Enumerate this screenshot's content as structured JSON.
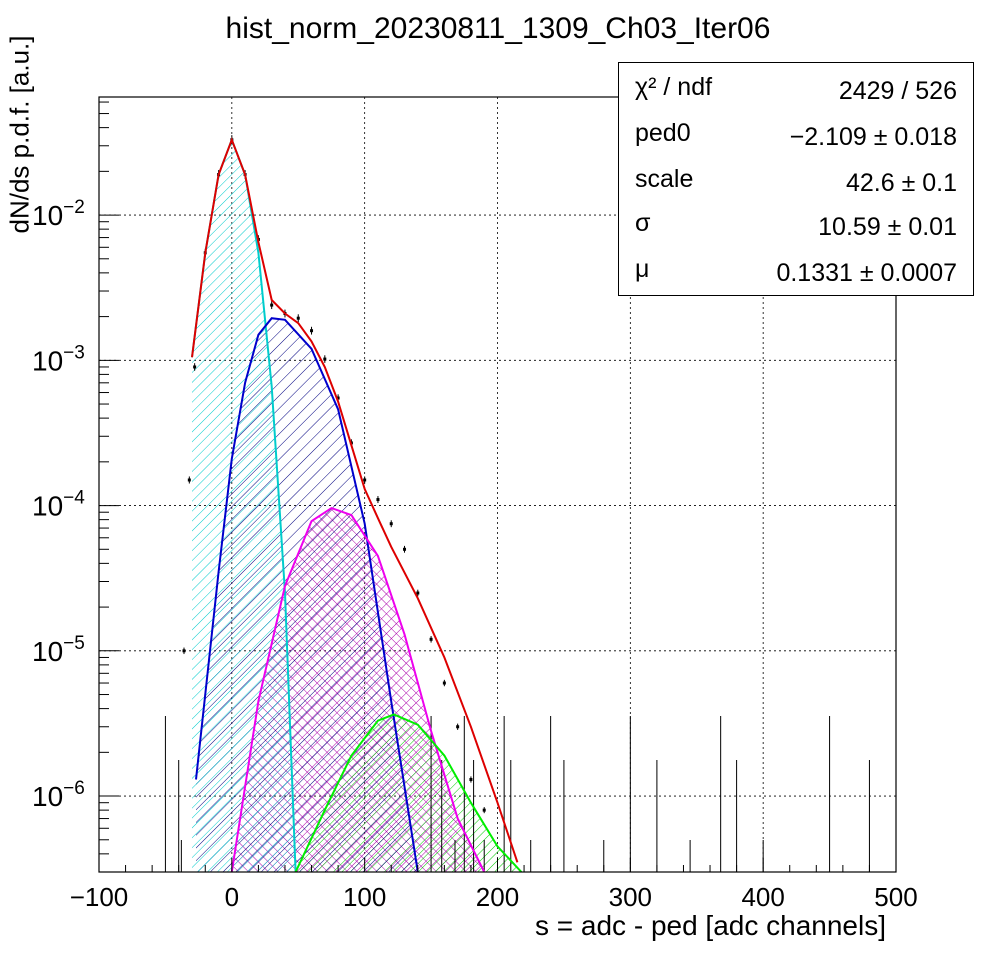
{
  "chart_data": {
    "type": "histogram",
    "title": "hist_norm_20230811_1309_Ch03_Iter06",
    "xlabel": "s = adc - ped [adc channels]",
    "ylabel": "dN/ds p.d.f. [a.u.]",
    "xlim": [
      -100,
      500
    ],
    "ylim": [
      3e-07,
      0.065
    ],
    "yscale": "log",
    "grid": true,
    "x_ticks": [
      "−100",
      "0",
      "100",
      "200",
      "300",
      "400",
      "500"
    ],
    "y_ticks": [
      {
        "value": 1e-06,
        "base": "10",
        "exp": "−6"
      },
      {
        "value": 1e-05,
        "base": "10",
        "exp": "−5"
      },
      {
        "value": 0.0001,
        "base": "10",
        "exp": "−4"
      },
      {
        "value": 0.001,
        "base": "10",
        "exp": "−3"
      },
      {
        "value": 0.01,
        "base": "10",
        "exp": "−2"
      }
    ],
    "stats": [
      {
        "key": "χ² / ndf",
        "value": "2429 / 526"
      },
      {
        "key": "ped0",
        "value": "−2.109 ± 0.018"
      },
      {
        "key": "scale",
        "value": "42.6 ± 0.1"
      },
      {
        "key": "σ",
        "value": "10.59 ± 0.01"
      },
      {
        "key": "μ",
        "value": "0.1331 ± 0.0007"
      }
    ],
    "series": [
      {
        "color": "#00cccc",
        "x": [
          -30,
          -20,
          -10,
          0,
          10,
          20,
          30,
          40,
          48
        ],
        "y": [
          0.00105,
          0.0055,
          0.019,
          0.033,
          0.019,
          0.0055,
          0.00066,
          2.5e-05,
          3e-07
        ]
      },
      {
        "color": "#0000cc",
        "x": [
          -27,
          -10,
          0,
          10,
          20,
          30,
          40,
          60,
          80,
          100,
          120,
          140
        ],
        "y": [
          1.3e-06,
          3.5e-05,
          0.00021,
          0.0007,
          0.0015,
          0.00195,
          0.0019,
          0.0012,
          0.00046,
          7.5e-05,
          4.5e-06,
          3e-07
        ]
      },
      {
        "color": "#ee00ee",
        "x": [
          0,
          20,
          40,
          60,
          75,
          90,
          110,
          130,
          150,
          170,
          190
        ],
        "y": [
          3e-07,
          4.5e-06,
          2.8e-05,
          7.8e-05,
          9.6e-05,
          8.6e-05,
          4.5e-05,
          1.3e-05,
          2.8e-06,
          7e-07,
          3e-07
        ]
      },
      {
        "color": "#00ee00",
        "x": [
          48,
          70,
          90,
          110,
          122,
          140,
          160,
          180,
          200,
          218
        ],
        "y": [
          3e-07,
          8e-07,
          1.9e-06,
          3.3e-06,
          3.65e-06,
          3.1e-06,
          1.9e-06,
          9e-07,
          4.5e-07,
          3e-07
        ]
      },
      {
        "color": "#dd0000",
        "x": [
          -30,
          -20,
          -10,
          0,
          10,
          20,
          30,
          40,
          50,
          60,
          70,
          80,
          90,
          100,
          110,
          120,
          140,
          160,
          180,
          200,
          215
        ],
        "y": [
          0.00105,
          0.0055,
          0.019,
          0.033,
          0.019,
          0.0065,
          0.0026,
          0.0021,
          0.0018,
          0.00135,
          0.0009,
          0.00052,
          0.00026,
          0.00013,
          8.2e-05,
          5.2e-05,
          2.3e-05,
          9e-06,
          3e-06,
          9e-07,
          3.5e-07
        ]
      }
    ],
    "data_points": {
      "color": "#000000",
      "x": [
        -36,
        -32,
        -28,
        -20,
        -10,
        0,
        10,
        20,
        30,
        40,
        50,
        60,
        70,
        80,
        90,
        100,
        110,
        120,
        130,
        140,
        150,
        160,
        170,
        180,
        190
      ],
      "y": [
        1e-05,
        0.00015,
        0.0009,
        0.0055,
        0.019,
        0.033,
        0.019,
        0.0068,
        0.0024,
        0.0021,
        0.00195,
        0.0016,
        0.00102,
        0.00055,
        0.00027,
        0.00015,
        0.00011,
        7.5e-05,
        5e-05,
        2.5e-05,
        1.2e-05,
        6e-06,
        3e-06,
        1.3e-06,
        8e-07
      ]
    },
    "sparse_bins_x": [
      -50,
      -40,
      -38,
      150,
      158,
      168,
      175,
      182,
      190,
      205,
      210,
      225,
      240,
      250,
      280,
      300,
      320,
      345,
      368,
      380,
      400,
      450,
      480
    ]
  }
}
